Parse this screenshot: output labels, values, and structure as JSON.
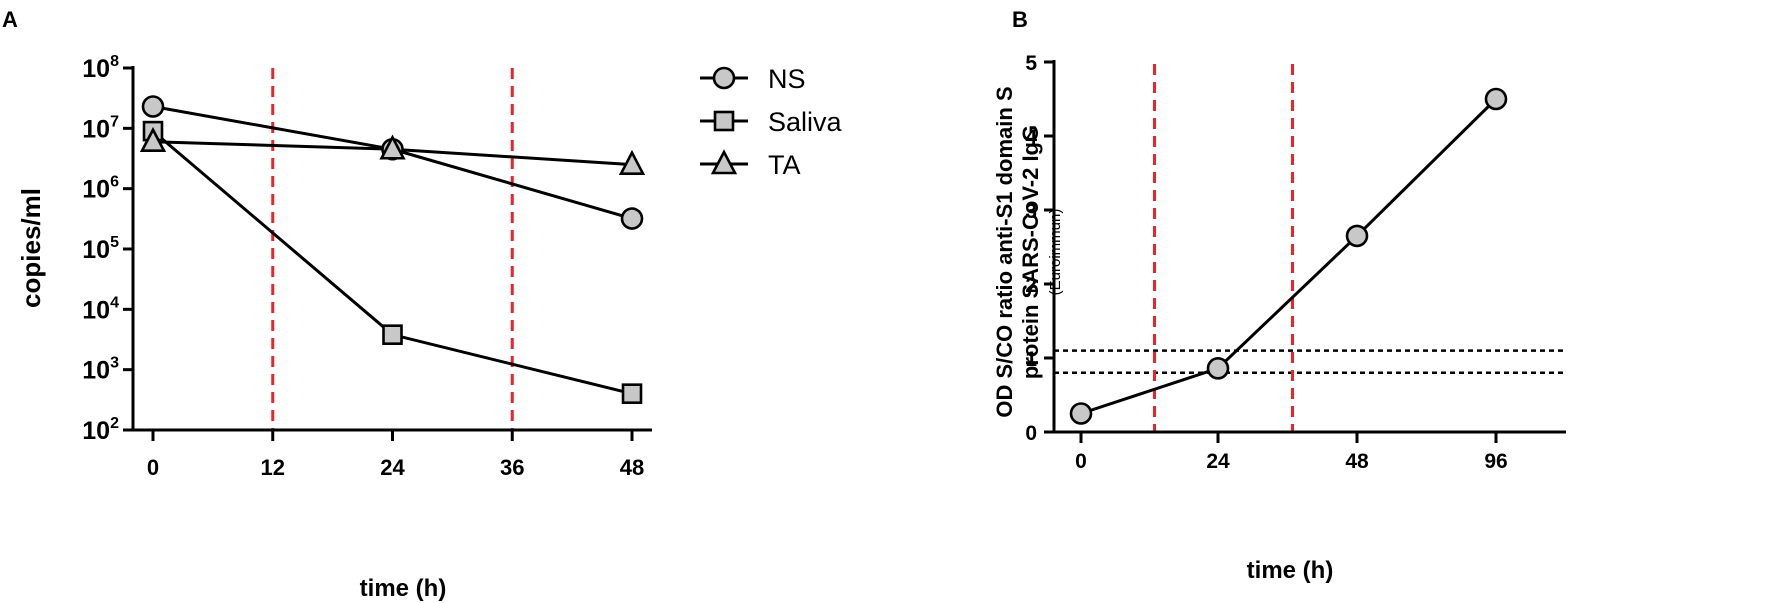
{
  "panels": {
    "A": {
      "letter": "A"
    },
    "B": {
      "letter": "B"
    }
  },
  "chart_data": [
    {
      "panel": "A",
      "type": "line",
      "ylabel": "copies/ml",
      "xlabel": "time (h)",
      "x_ticks": [
        0,
        12,
        24,
        36,
        48
      ],
      "xlim": [
        0,
        48
      ],
      "y_scale": "log",
      "ylim": [
        100,
        100000000
      ],
      "y_tick_exponents": [
        2,
        3,
        4,
        5,
        6,
        7,
        8
      ],
      "y_tick_base": "10",
      "vertical_reference_lines": {
        "x": [
          12,
          36
        ],
        "color": "#e8262a",
        "style": "dashed"
      },
      "legend": {
        "position": "right",
        "entries": [
          "NS",
          "Saliva",
          "TA"
        ]
      },
      "series": [
        {
          "name": "NS",
          "marker": "circle",
          "x": [
            0,
            24,
            48
          ],
          "y": [
            23000000,
            4500000,
            320000
          ]
        },
        {
          "name": "Saliva",
          "marker": "square",
          "x": [
            0,
            24,
            48
          ],
          "y": [
            9000000,
            3800,
            400
          ]
        },
        {
          "name": "TA",
          "marker": "triangle",
          "x": [
            0,
            24,
            48
          ],
          "y": [
            6000000,
            4500000,
            2500000
          ]
        }
      ]
    },
    {
      "panel": "B",
      "type": "line",
      "ylabel_lines": [
        "OD S/CO ratio anti-S1 domain S",
        "protein SARS-CoV-2 IgG"
      ],
      "ylabel_sub": "(Euroimmun)",
      "xlabel": "time (h)",
      "categories": [
        "0",
        "24",
        "48",
        "96"
      ],
      "ylim": [
        0,
        5
      ],
      "y_ticks": [
        0,
        1,
        2,
        3,
        4,
        5
      ],
      "vertical_reference_lines": {
        "between_categories": [
          [
            0,
            1
          ],
          [
            1,
            2
          ]
        ],
        "color": "#e8262a",
        "style": "dashed"
      },
      "horizontal_reference_lines": {
        "y": [
          0.8,
          1.1
        ],
        "color": "#000000",
        "style": "dotted"
      },
      "series": [
        {
          "marker": "circle",
          "values": [
            0.25,
            0.86,
            2.65,
            4.5
          ]
        }
      ]
    }
  ]
}
